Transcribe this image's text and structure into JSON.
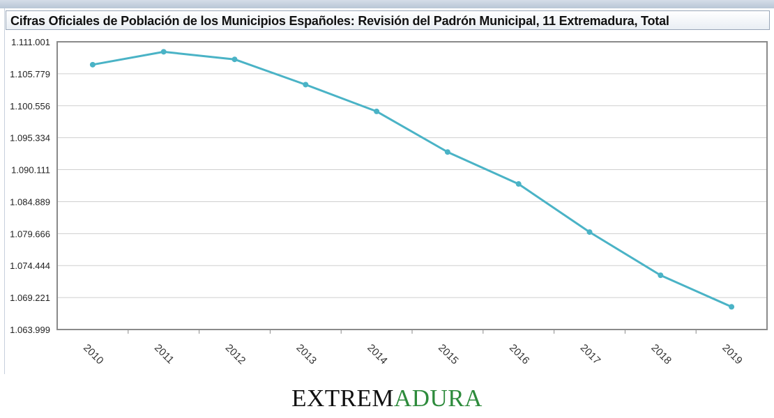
{
  "chart_data": {
    "type": "line",
    "title": "Cifras Oficiales de Población de los Municipios Españoles: Revisión del Padrón Municipal, 11 Extremadura, Total",
    "xlabel": "",
    "ylabel": "",
    "x": [
      "2010",
      "2011",
      "2012",
      "2013",
      "2014",
      "2015",
      "2016",
      "2017",
      "2018",
      "2019"
    ],
    "values": [
      1107264,
      1109367,
      1108130,
      1104004,
      1099632,
      1092997,
      1087778,
      1079920,
      1072863,
      1067710
    ],
    "ylim": [
      1063999,
      1111001
    ],
    "yticks": [
      "1.111.001",
      "1.105.779",
      "1.100.556",
      "1.095.334",
      "1.090.111",
      "1.084.889",
      "1.079.666",
      "1.074.444",
      "1.069.221",
      "1.063.999"
    ],
    "grid": true,
    "colors": {
      "line": "#4ab3c6",
      "grid": "#cfcfcf",
      "axis": "#8a8a8a"
    }
  },
  "brand": {
    "part1": "EXTREM",
    "part2": "ADURA",
    "color1": "#111111",
    "color2": "#2e8b3c"
  }
}
